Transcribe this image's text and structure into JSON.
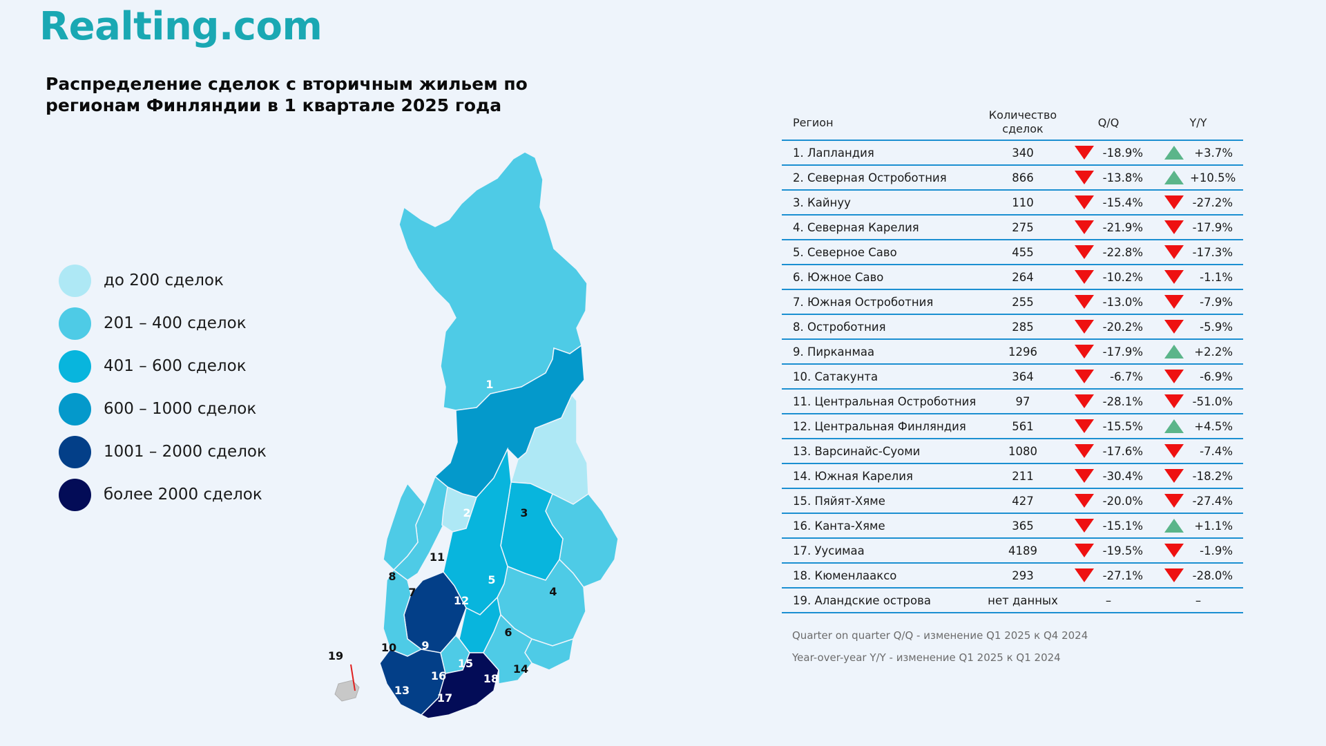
{
  "logo": "Realting.com",
  "title": "Распределение сделок с вторичным жильем по регионам Финляндии в 1 квартале 2025 года",
  "colors": {
    "up": "#5bb58a",
    "down": "#ee1111",
    "line": "#1b8fd1",
    "logo": "#1aa8b3"
  },
  "legend": [
    {
      "label": "до 200 сделок",
      "color": "#aee8f5"
    },
    {
      "label": "201 – 400 сделок",
      "color": "#4ecbe6"
    },
    {
      "label": "401 – 600 сделок",
      "color": "#08b5dd"
    },
    {
      "label": "600 – 1000 сделок",
      "color": "#0499cb"
    },
    {
      "label": "1001 – 2000 сделок",
      "color": "#033f88"
    },
    {
      "label": "более 2000 сделок",
      "color": "#030c57"
    }
  ],
  "table": {
    "headers": {
      "region": "Регион",
      "count": "Количество сделок",
      "qq": "Q/Q",
      "yy": "Y/Y"
    },
    "rows": [
      {
        "region": "1. Лапландия",
        "count": "340",
        "qq": "-18.9%",
        "qq_dir": "down",
        "yy": "+3.7%",
        "yy_dir": "up"
      },
      {
        "region": "2. Северная Остроботния",
        "count": "866",
        "qq": "-13.8%",
        "qq_dir": "down",
        "yy": "+10.5%",
        "yy_dir": "up"
      },
      {
        "region": "3. Кайнуу",
        "count": "110",
        "qq": "-15.4%",
        "qq_dir": "down",
        "yy": "-27.2%",
        "yy_dir": "down"
      },
      {
        "region": "4. Северная Карелия",
        "count": "275",
        "qq": "-21.9%",
        "qq_dir": "down",
        "yy": "-17.9%",
        "yy_dir": "down"
      },
      {
        "region": "5. Северное Саво",
        "count": "455",
        "qq": "-22.8%",
        "qq_dir": "down",
        "yy": "-17.3%",
        "yy_dir": "down"
      },
      {
        "region": "6. Южное Саво",
        "count": "264",
        "qq": "-10.2%",
        "qq_dir": "down",
        "yy": "-1.1%",
        "yy_dir": "down"
      },
      {
        "region": "7. Южная Остроботния",
        "count": "255",
        "qq": "-13.0%",
        "qq_dir": "down",
        "yy": "-7.9%",
        "yy_dir": "down"
      },
      {
        "region": "8. Остроботния",
        "count": "285",
        "qq": "-20.2%",
        "qq_dir": "down",
        "yy": "-5.9%",
        "yy_dir": "down"
      },
      {
        "region": "9. Пирканмаа",
        "count": "1296",
        "qq": "-17.9%",
        "qq_dir": "down",
        "yy": "+2.2%",
        "yy_dir": "up"
      },
      {
        "region": "10. Сатакунта",
        "count": "364",
        "qq": "-6.7%",
        "qq_dir": "down",
        "yy": "-6.9%",
        "yy_dir": "down"
      },
      {
        "region": "11. Центральная Остроботния",
        "count": "97",
        "qq": "-28.1%",
        "qq_dir": "down",
        "yy": "-51.0%",
        "yy_dir": "down"
      },
      {
        "region": "12. Центральная Финляндия",
        "count": "561",
        "qq": "-15.5%",
        "qq_dir": "down",
        "yy": "+4.5%",
        "yy_dir": "up"
      },
      {
        "region": "13. Варсинайс-Суоми",
        "count": "1080",
        "qq": "-17.6%",
        "qq_dir": "down",
        "yy": "-7.4%",
        "yy_dir": "down"
      },
      {
        "region": "14. Южная Карелия",
        "count": "211",
        "qq": "-30.4%",
        "qq_dir": "down",
        "yy": "-18.2%",
        "yy_dir": "down"
      },
      {
        "region": "15. Пяйят-Хяме",
        "count": "427",
        "qq": "-20.0%",
        "qq_dir": "down",
        "yy": "-27.4%",
        "yy_dir": "down"
      },
      {
        "region": "16. Канта-Хяме",
        "count": "365",
        "qq": "-15.1%",
        "qq_dir": "down",
        "yy": "+1.1%",
        "yy_dir": "up"
      },
      {
        "region": "17. Уусимаа",
        "count": "4189",
        "qq": "-19.5%",
        "qq_dir": "down",
        "yy": "-1.9%",
        "yy_dir": "down"
      },
      {
        "region": "18. Кюменлааксо",
        "count": "293",
        "qq": "-27.1%",
        "qq_dir": "down",
        "yy": "-28.0%",
        "yy_dir": "down"
      },
      {
        "region": "19. Аландские острова",
        "count": "нет данных",
        "qq": "–",
        "qq_dir": "none",
        "yy": "–",
        "yy_dir": "none"
      }
    ]
  },
  "notes": [
    "Quarter on quarter Q/Q  - изменение Q1 2025 к Q4 2024",
    "Year-over-year Y/Y - изменение Q1 2025 к Q1 2024"
  ],
  "map": {
    "labels": [
      {
        "num": "1",
        "color": "#ffffff"
      },
      {
        "num": "2",
        "color": "#ffffff"
      },
      {
        "num": "3",
        "color": "#111111"
      },
      {
        "num": "4",
        "color": "#111111"
      },
      {
        "num": "5",
        "color": "#ffffff"
      },
      {
        "num": "6",
        "color": "#111111"
      },
      {
        "num": "7",
        "color": "#111111"
      },
      {
        "num": "8",
        "color": "#111111"
      },
      {
        "num": "9",
        "color": "#ffffff"
      },
      {
        "num": "10",
        "color": "#111111"
      },
      {
        "num": "11",
        "color": "#111111"
      },
      {
        "num": "12",
        "color": "#ffffff"
      },
      {
        "num": "13",
        "color": "#ffffff"
      },
      {
        "num": "14",
        "color": "#111111"
      },
      {
        "num": "15",
        "color": "#ffffff"
      },
      {
        "num": "16",
        "color": "#ffffff"
      },
      {
        "num": "17",
        "color": "#ffffff"
      },
      {
        "num": "18",
        "color": "#ffffff"
      },
      {
        "num": "19",
        "color": "#111111"
      }
    ]
  }
}
